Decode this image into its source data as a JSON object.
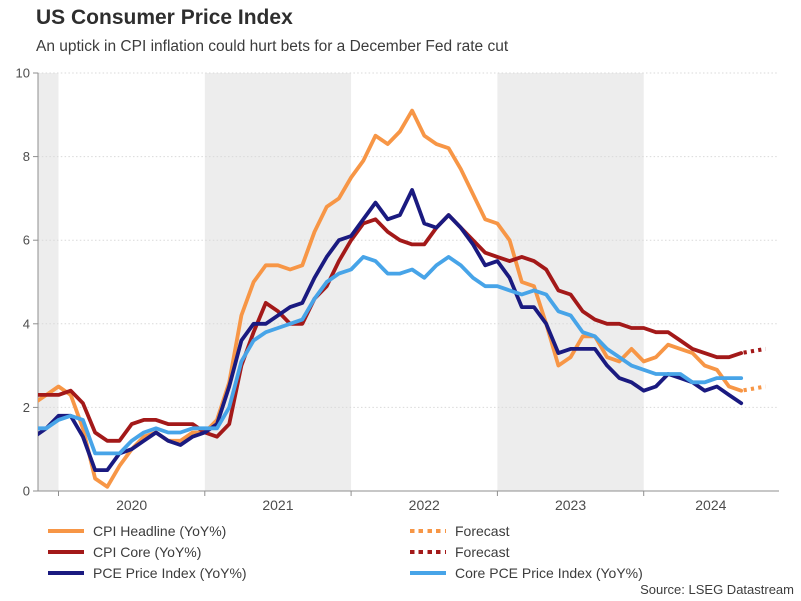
{
  "header": {
    "title": "US Consumer Price Index",
    "subtitle": "An uptick in CPI inflation could hurt bets for a December Fed rate cut"
  },
  "source": "Source: LSEG Datastream",
  "legend": {
    "left": [
      {
        "label": "CPI Headline (YoY%)",
        "color": "#F79646",
        "style": "solid"
      },
      {
        "label": "CPI Core (YoY%)",
        "color": "#A31919",
        "style": "solid"
      },
      {
        "label": "PCE Price Index (YoY%)",
        "color": "#1A1A80",
        "style": "solid"
      }
    ],
    "right": [
      {
        "label": "Forecast",
        "color": "#F79646",
        "style": "dotted"
      },
      {
        "label": "Forecast",
        "color": "#A31919",
        "style": "dotted"
      },
      {
        "label": "Core PCE Price Index (YoY%)",
        "color": "#47A4E8",
        "style": "solid"
      }
    ]
  },
  "chart_data": {
    "type": "line",
    "title": "US Consumer Price Index",
    "subtitle": "An uptick in CPI inflation could hurt bets for a December Fed rate cut",
    "x_start": "2019-11",
    "x_end": "2024-09",
    "x_frequency": "monthly",
    "ylim": [
      0,
      10
    ],
    "yticks": [
      0,
      2,
      4,
      6,
      8,
      10
    ],
    "year_labels": [
      "2020",
      "2021",
      "2022",
      "2023",
      "2024"
    ],
    "shaded_years": [
      2019,
      2021,
      2023
    ],
    "grid": {
      "style": "dotted",
      "color": "#D9D9D9"
    },
    "band_color": "#EDEDED",
    "axis_color": "#8F8F8F",
    "tick_label_color": "#4D4D4D",
    "legend_position": "bottom",
    "series": [
      {
        "name": "CPI Headline (YoY%)",
        "color": "#F79646",
        "values": [
          2.1,
          2.3,
          2.5,
          2.3,
          1.5,
          0.3,
          0.1,
          0.6,
          1.0,
          1.3,
          1.4,
          1.2,
          1.2,
          1.4,
          1.4,
          1.7,
          2.6,
          4.2,
          5.0,
          5.4,
          5.4,
          5.3,
          5.4,
          6.2,
          6.8,
          7.0,
          7.5,
          7.9,
          8.5,
          8.3,
          8.6,
          9.1,
          8.5,
          8.3,
          8.2,
          7.7,
          7.1,
          6.5,
          6.4,
          6.0,
          5.0,
          4.9,
          4.0,
          3.0,
          3.2,
          3.7,
          3.7,
          3.2,
          3.1,
          3.4,
          3.1,
          3.2,
          3.5,
          3.4,
          3.3,
          3.0,
          2.9,
          2.5,
          2.4
        ]
      },
      {
        "name": "CPI Core (YoY%)",
        "color": "#A31919",
        "values": [
          2.3,
          2.3,
          2.3,
          2.4,
          2.1,
          1.4,
          1.2,
          1.2,
          1.6,
          1.7,
          1.7,
          1.6,
          1.6,
          1.6,
          1.4,
          1.3,
          1.6,
          3.0,
          3.8,
          4.5,
          4.3,
          4.0,
          4.0,
          4.6,
          4.9,
          5.5,
          6.0,
          6.4,
          6.5,
          6.2,
          6.0,
          5.9,
          5.9,
          6.3,
          6.6,
          6.3,
          6.0,
          5.7,
          5.6,
          5.5,
          5.6,
          5.5,
          5.3,
          4.8,
          4.7,
          4.3,
          4.1,
          4.0,
          4.0,
          3.9,
          3.9,
          3.8,
          3.8,
          3.6,
          3.4,
          3.3,
          3.2,
          3.2,
          3.3
        ]
      },
      {
        "name": "PCE Price Index (YoY%)",
        "color": "#1A1A80",
        "values": [
          1.3,
          1.5,
          1.8,
          1.8,
          1.3,
          0.5,
          0.5,
          0.9,
          1.0,
          1.2,
          1.4,
          1.2,
          1.1,
          1.3,
          1.4,
          1.6,
          2.5,
          3.6,
          4.0,
          4.0,
          4.2,
          4.4,
          4.5,
          5.1,
          5.6,
          6.0,
          6.1,
          6.5,
          6.9,
          6.5,
          6.6,
          7.2,
          6.4,
          6.3,
          6.6,
          6.3,
          5.9,
          5.4,
          5.5,
          5.1,
          4.4,
          4.4,
          4.0,
          3.3,
          3.4,
          3.4,
          3.4,
          3.0,
          2.7,
          2.6,
          2.4,
          2.5,
          2.8,
          2.7,
          2.6,
          2.4,
          2.5,
          2.3,
          2.1
        ]
      },
      {
        "name": "Core PCE Price Index (YoY%)",
        "color": "#47A4E8",
        "values": [
          1.5,
          1.5,
          1.7,
          1.8,
          1.7,
          0.9,
          0.9,
          0.9,
          1.2,
          1.4,
          1.5,
          1.4,
          1.4,
          1.5,
          1.5,
          1.5,
          2.0,
          3.1,
          3.6,
          3.8,
          3.9,
          4.0,
          4.1,
          4.6,
          5.0,
          5.2,
          5.3,
          5.6,
          5.5,
          5.2,
          5.2,
          5.3,
          5.1,
          5.4,
          5.6,
          5.4,
          5.1,
          4.9,
          4.9,
          4.8,
          4.7,
          4.8,
          4.7,
          4.3,
          4.2,
          3.8,
          3.7,
          3.4,
          3.2,
          3.0,
          2.9,
          2.8,
          2.8,
          2.8,
          2.6,
          2.6,
          2.7,
          2.7,
          2.7
        ]
      }
    ],
    "forecast": [
      {
        "series": "CPI Headline (YoY%)",
        "label": "Forecast",
        "color": "#F79646",
        "month": "2024-11",
        "value": 2.5
      },
      {
        "series": "CPI Core (YoY%)",
        "label": "Forecast",
        "color": "#A31919",
        "month": "2024-11",
        "value": 3.4
      }
    ]
  }
}
